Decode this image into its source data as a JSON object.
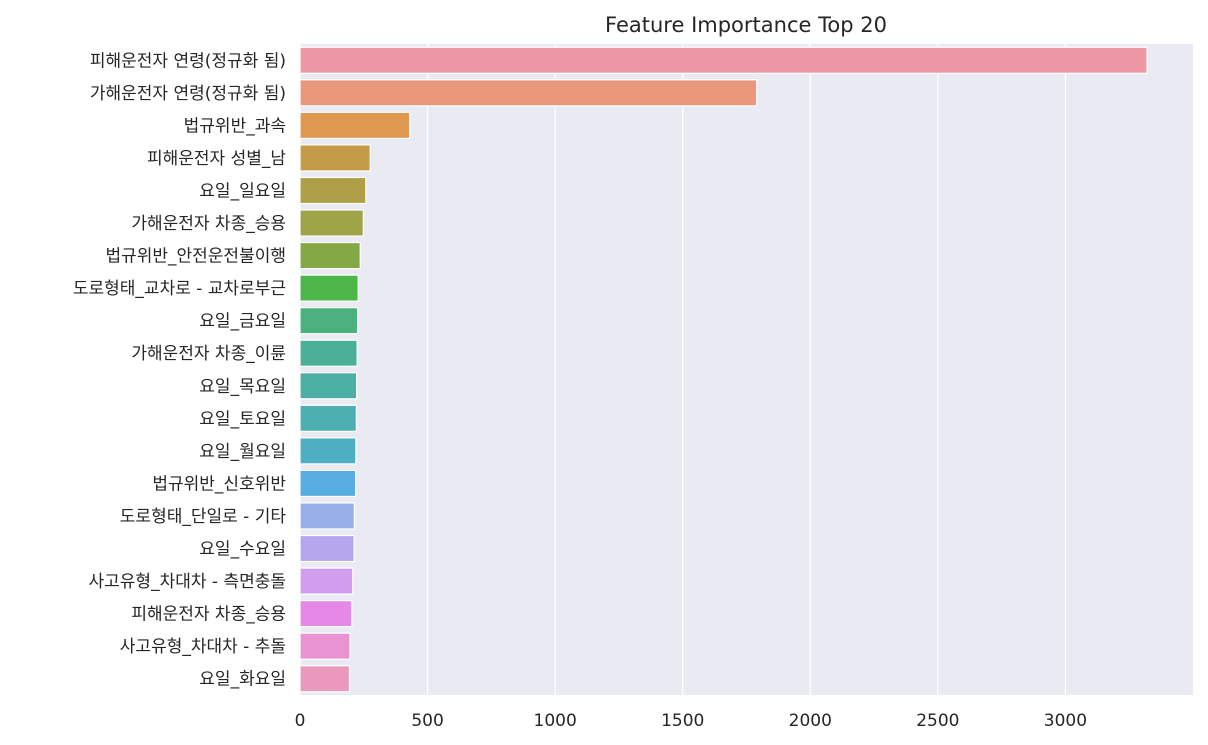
{
  "chart_data": {
    "type": "bar",
    "orientation": "horizontal",
    "title": "Feature Importance Top 20",
    "xlabel": "",
    "ylabel": "",
    "xlim": [
      0,
      3500
    ],
    "xticks": [
      0,
      500,
      1000,
      1500,
      2000,
      2500,
      3000
    ],
    "grid": true,
    "categories": [
      "피해운전자 연령(정규화 됨)",
      "가해운전자 연령(정규화 됨)",
      "법규위반_과속",
      "피해운전자 성별_남",
      "요일_일요일",
      "가해운전자 차종_승용",
      "법규위반_안전운전불이행",
      "도로형태_교차로 - 교차로부근",
      "요일_금요일",
      "가해운전자 차종_이륜",
      "요일_목요일",
      "요일_토요일",
      "요일_월요일",
      "법규위반_신호위반",
      "도로형태_단일로 - 기타",
      "요일_수요일",
      "사고유형_차대차 - 측면충돌",
      "피해운전자 차종_승용",
      "사고유형_차대차 - 추돌",
      "요일_화요일"
    ],
    "values": [
      3320,
      1790,
      430,
      275,
      258,
      248,
      236,
      228,
      226,
      224,
      222,
      221,
      219,
      218,
      213,
      212,
      207,
      203,
      196,
      194
    ],
    "colors": [
      "#ed97a4",
      "#e9987c",
      "#de9850",
      "#c39b49",
      "#ae9f46",
      "#9ea447",
      "#84a845",
      "#4cb648",
      "#4bb17f",
      "#4bb096",
      "#4bafa4",
      "#4cafb2",
      "#4eafc2",
      "#58ade0",
      "#98b0ea",
      "#b5a7ed",
      "#d29ded",
      "#e689e6",
      "#ea93d2",
      "#ea99bd"
    ]
  }
}
